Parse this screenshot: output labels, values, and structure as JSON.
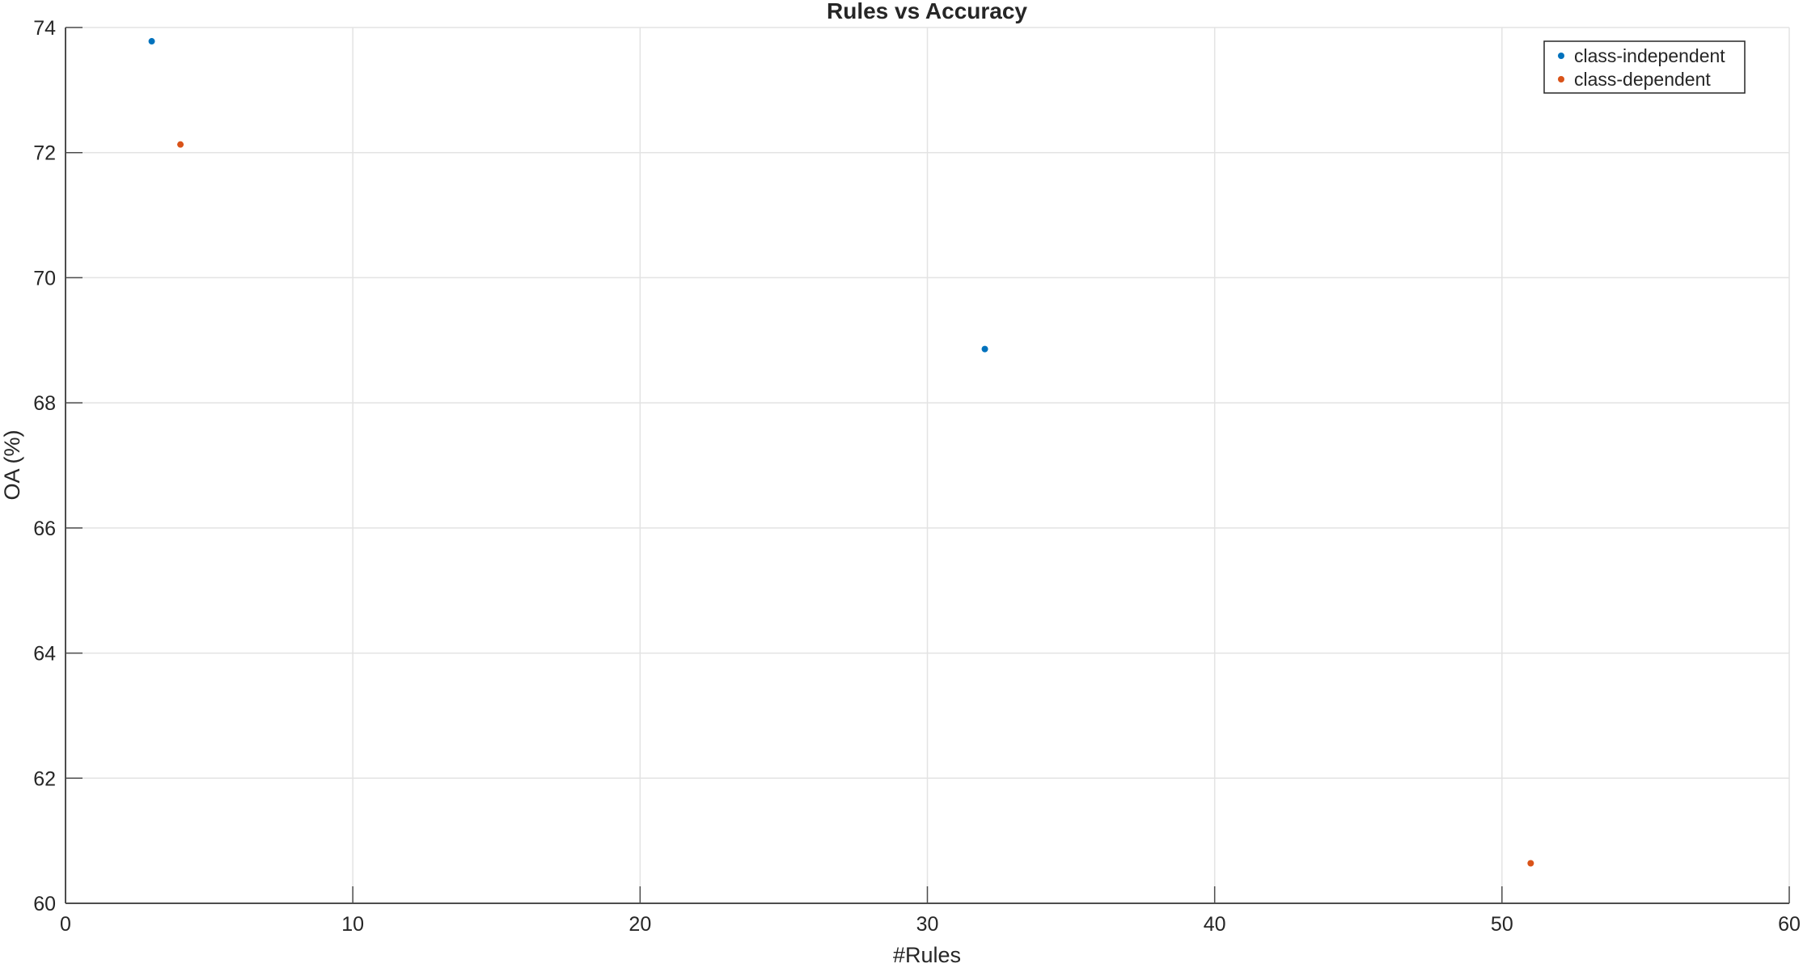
{
  "chart_data": {
    "type": "scatter",
    "title": "Rules vs Accuracy",
    "xlabel": "#Rules",
    "ylabel": "OA (%)",
    "xlim": [
      0,
      60
    ],
    "ylim": [
      60,
      74
    ],
    "xticks": [
      0,
      10,
      20,
      30,
      40,
      50,
      60
    ],
    "yticks": [
      60,
      62,
      64,
      66,
      68,
      70,
      72,
      74
    ],
    "grid": true,
    "legend_position": "top-right",
    "series": [
      {
        "name": "class-independent",
        "color": "#0072BD",
        "points": [
          {
            "x": 3,
            "y": 73.78
          },
          {
            "x": 32,
            "y": 68.86
          }
        ]
      },
      {
        "name": "class-dependent",
        "color": "#D95319",
        "points": [
          {
            "x": 4,
            "y": 72.13
          },
          {
            "x": 51,
            "y": 60.64
          }
        ]
      }
    ]
  }
}
